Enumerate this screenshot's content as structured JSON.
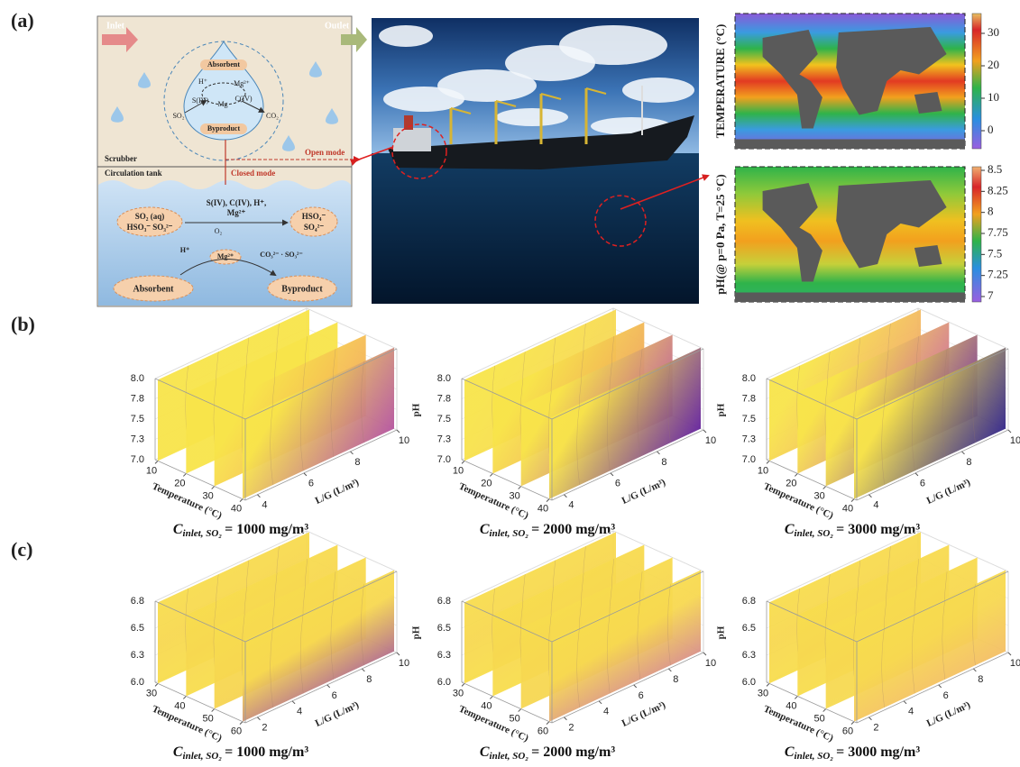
{
  "panel_labels": [
    "(a)",
    "(b)",
    "(c)"
  ],
  "diagram": {
    "inlet": "Inlet",
    "outlet": "Outlet",
    "absorbent_top": "Absorbent",
    "byproduct_top": "Byproduct",
    "drop_species": [
      "H⁺",
      "Mg²⁺",
      "S(IV)",
      "Mg",
      "C(IV)",
      "SO₂",
      "CO₂"
    ],
    "scrubber": "Scrubber",
    "open_mode": "Open mode",
    "closed_mode": "Closed mode",
    "circulation_tank": "Circulation tank",
    "ions": [
      "S(IV), C(IV), H⁺,",
      "Mg²⁺"
    ],
    "left_box": [
      "SO₂ (aq)",
      "HSO₃⁻ SO₃²⁻"
    ],
    "oxygen": "O₂",
    "right_box": [
      "HSO₄⁻",
      "SO₄²⁻"
    ],
    "proton": "H⁺",
    "magnesium": "Mg²⁺",
    "anions": "CO₃²⁻ · SO₃²⁻",
    "absorbent_bottom": "Absorbent",
    "byproduct_bottom": "Byproduct"
  },
  "maps": [
    {
      "label": "TEMPERATURE (°C)",
      "ticks": [
        "30",
        "20",
        "10",
        "0"
      ]
    },
    {
      "label": "pH(@ p=0 Pa, T=25 °C)",
      "ticks": [
        "8.5",
        "8.25",
        "8",
        "7.75",
        "7.5",
        "7.25",
        "7"
      ]
    }
  ],
  "row_b": [
    {
      "ph_ticks": [
        "7.0",
        "7.3",
        "7.5",
        "7.8",
        "8.0"
      ],
      "temperature_label": "Temperature (°C)",
      "temperature_ticks": [
        "10",
        "20",
        "30",
        "40"
      ],
      "lg_label": "L/G (L/m³)",
      "lg_ticks": [
        "4",
        "6",
        "8",
        "10"
      ],
      "caption": {
        "symbol": "C",
        "subscript": "inlet, SO₂",
        "text": "= 1000 mg/m³"
      }
    },
    {
      "ph_label": "pH",
      "ph_ticks": [
        "7.0",
        "7.3",
        "7.5",
        "7.8",
        "8.0"
      ],
      "temperature_label": "Temperature (°C)",
      "temperature_ticks": [
        "10",
        "20",
        "30",
        "40"
      ],
      "lg_label": "L/G (L/m³)",
      "lg_ticks": [
        "4",
        "6",
        "8",
        "10"
      ],
      "caption": {
        "symbol": "C",
        "subscript": "inlet, SO₂",
        "text": "= 2000 mg/m³"
      }
    },
    {
      "ph_label": "pH",
      "ph_ticks": [
        "7.0",
        "7.3",
        "7.5",
        "7.8",
        "8.0"
      ],
      "temperature_label": "Temperature (°C)",
      "temperature_ticks": [
        "10",
        "20",
        "30",
        "40"
      ],
      "lg_label": "L/G (L/m³)",
      "lg_ticks": [
        "4",
        "6",
        "8",
        "10"
      ],
      "caption": {
        "symbol": "C",
        "subscript": "inlet, SO₂",
        "text": "= 3000 mg/m³"
      }
    }
  ],
  "row_c": [
    {
      "ph_ticks": [
        "6.0",
        "6.3",
        "6.5",
        "6.8"
      ],
      "temperature_label": "Temperature (°C)",
      "temperature_ticks": [
        "30",
        "40",
        "50",
        "60"
      ],
      "lg_label": "L/G (L/m³)",
      "lg_ticks": [
        "2",
        "4",
        "6",
        "8",
        "10"
      ],
      "caption": {
        "symbol": "C",
        "subscript": "inlet, SO₂",
        "text": "= 1000 mg/m³"
      }
    },
    {
      "ph_label": "pH",
      "ph_ticks": [
        "6.0",
        "6.3",
        "6.5",
        "6.8"
      ],
      "temperature_label": "Temperature (°C)",
      "temperature_ticks": [
        "30",
        "40",
        "50",
        "60"
      ],
      "lg_label": "L/G (L/m³)",
      "lg_ticks": [
        "2",
        "4",
        "6",
        "8",
        "10"
      ],
      "caption": {
        "symbol": "C",
        "subscript": "inlet, SO₂",
        "text": "= 2000 mg/m³"
      }
    },
    {
      "ph_label": "pH",
      "ph_ticks": [
        "6.0",
        "6.3",
        "6.5",
        "6.8"
      ],
      "temperature_label": "Temperature (°C)",
      "temperature_ticks": [
        "30",
        "40",
        "50",
        "60"
      ],
      "lg_label": "L/G (L/m³)",
      "lg_ticks": [
        "2",
        "4",
        "6",
        "8",
        "10"
      ],
      "caption": {
        "symbol": "C",
        "subscript": "inlet, SO₂",
        "text": "= 3000 mg/m³"
      }
    }
  ]
}
